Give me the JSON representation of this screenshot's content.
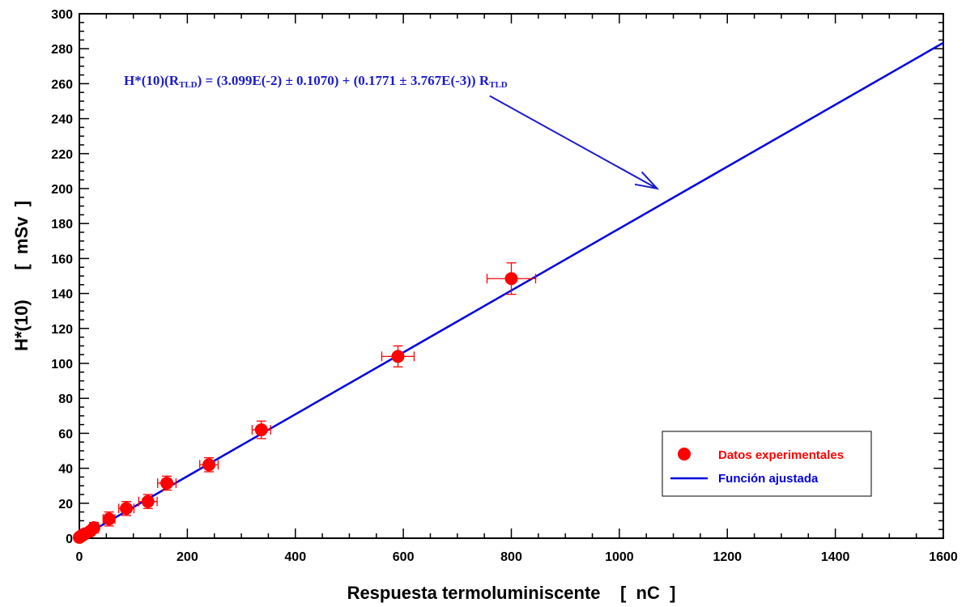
{
  "chart_data": {
    "type": "scatter",
    "xlabel": "Respuesta termoluminiscente    [  nC  ]",
    "ylabel": "H*(10)      [  mSv  ]",
    "xlim": [
      0,
      1600
    ],
    "ylim": [
      0,
      300
    ],
    "x_ticks": [
      0,
      200,
      400,
      600,
      800,
      1000,
      1200,
      1400,
      1600
    ],
    "y_ticks": [
      0,
      20,
      40,
      60,
      80,
      100,
      120,
      140,
      160,
      180,
      200,
      220,
      240,
      260,
      280,
      300
    ],
    "grid": false,
    "legend_position": "bottom-right",
    "series": [
      {
        "name": "Datos experimentales",
        "kind": "points-with-error-bars",
        "color": "#ff0000",
        "points": [
          {
            "x": 0,
            "y": 0.5,
            "xerr": 3,
            "yerr": 1
          },
          {
            "x": 2,
            "y": 1,
            "xerr": 3,
            "yerr": 1
          },
          {
            "x": 5,
            "y": 1.5,
            "xerr": 4,
            "yerr": 1.5
          },
          {
            "x": 10,
            "y": 2.5,
            "xerr": 4,
            "yerr": 2
          },
          {
            "x": 20,
            "y": 4,
            "xerr": 5,
            "yerr": 2
          },
          {
            "x": 27,
            "y": 6,
            "xerr": 6,
            "yerr": 3
          },
          {
            "x": 55,
            "y": 11,
            "xerr": 11,
            "yerr": 4
          },
          {
            "x": 87,
            "y": 17,
            "xerr": 14,
            "yerr": 4
          },
          {
            "x": 127,
            "y": 21,
            "xerr": 17,
            "yerr": 4
          },
          {
            "x": 162,
            "y": 31.5,
            "xerr": 17,
            "yerr": 4
          },
          {
            "x": 240,
            "y": 42,
            "xerr": 17,
            "yerr": 4
          },
          {
            "x": 337,
            "y": 62,
            "xerr": 17,
            "yerr": 5
          },
          {
            "x": 590,
            "y": 104,
            "xerr": 30,
            "yerr": 6
          },
          {
            "x": 800,
            "y": 148.5,
            "xerr": 45,
            "yerr": 9
          }
        ]
      },
      {
        "name": "Función ajustada",
        "kind": "line",
        "color": "#0000e0",
        "intercept": 0.03099,
        "slope": 0.1771
      }
    ],
    "annotation": {
      "parts": [
        {
          "text": "H*(10)(R",
          "sub": false
        },
        {
          "text": "TLD",
          "sub": true
        },
        {
          "text": ") = (3.099E(-2) ± 0.1070) + (0.1771 ± 3.767E(-3)) R",
          "sub": false
        },
        {
          "text": "TLD",
          "sub": true
        }
      ],
      "arrow_from": [
        760,
        253
      ],
      "arrow_to": [
        1070,
        200
      ],
      "color": "#1a1acc"
    }
  }
}
